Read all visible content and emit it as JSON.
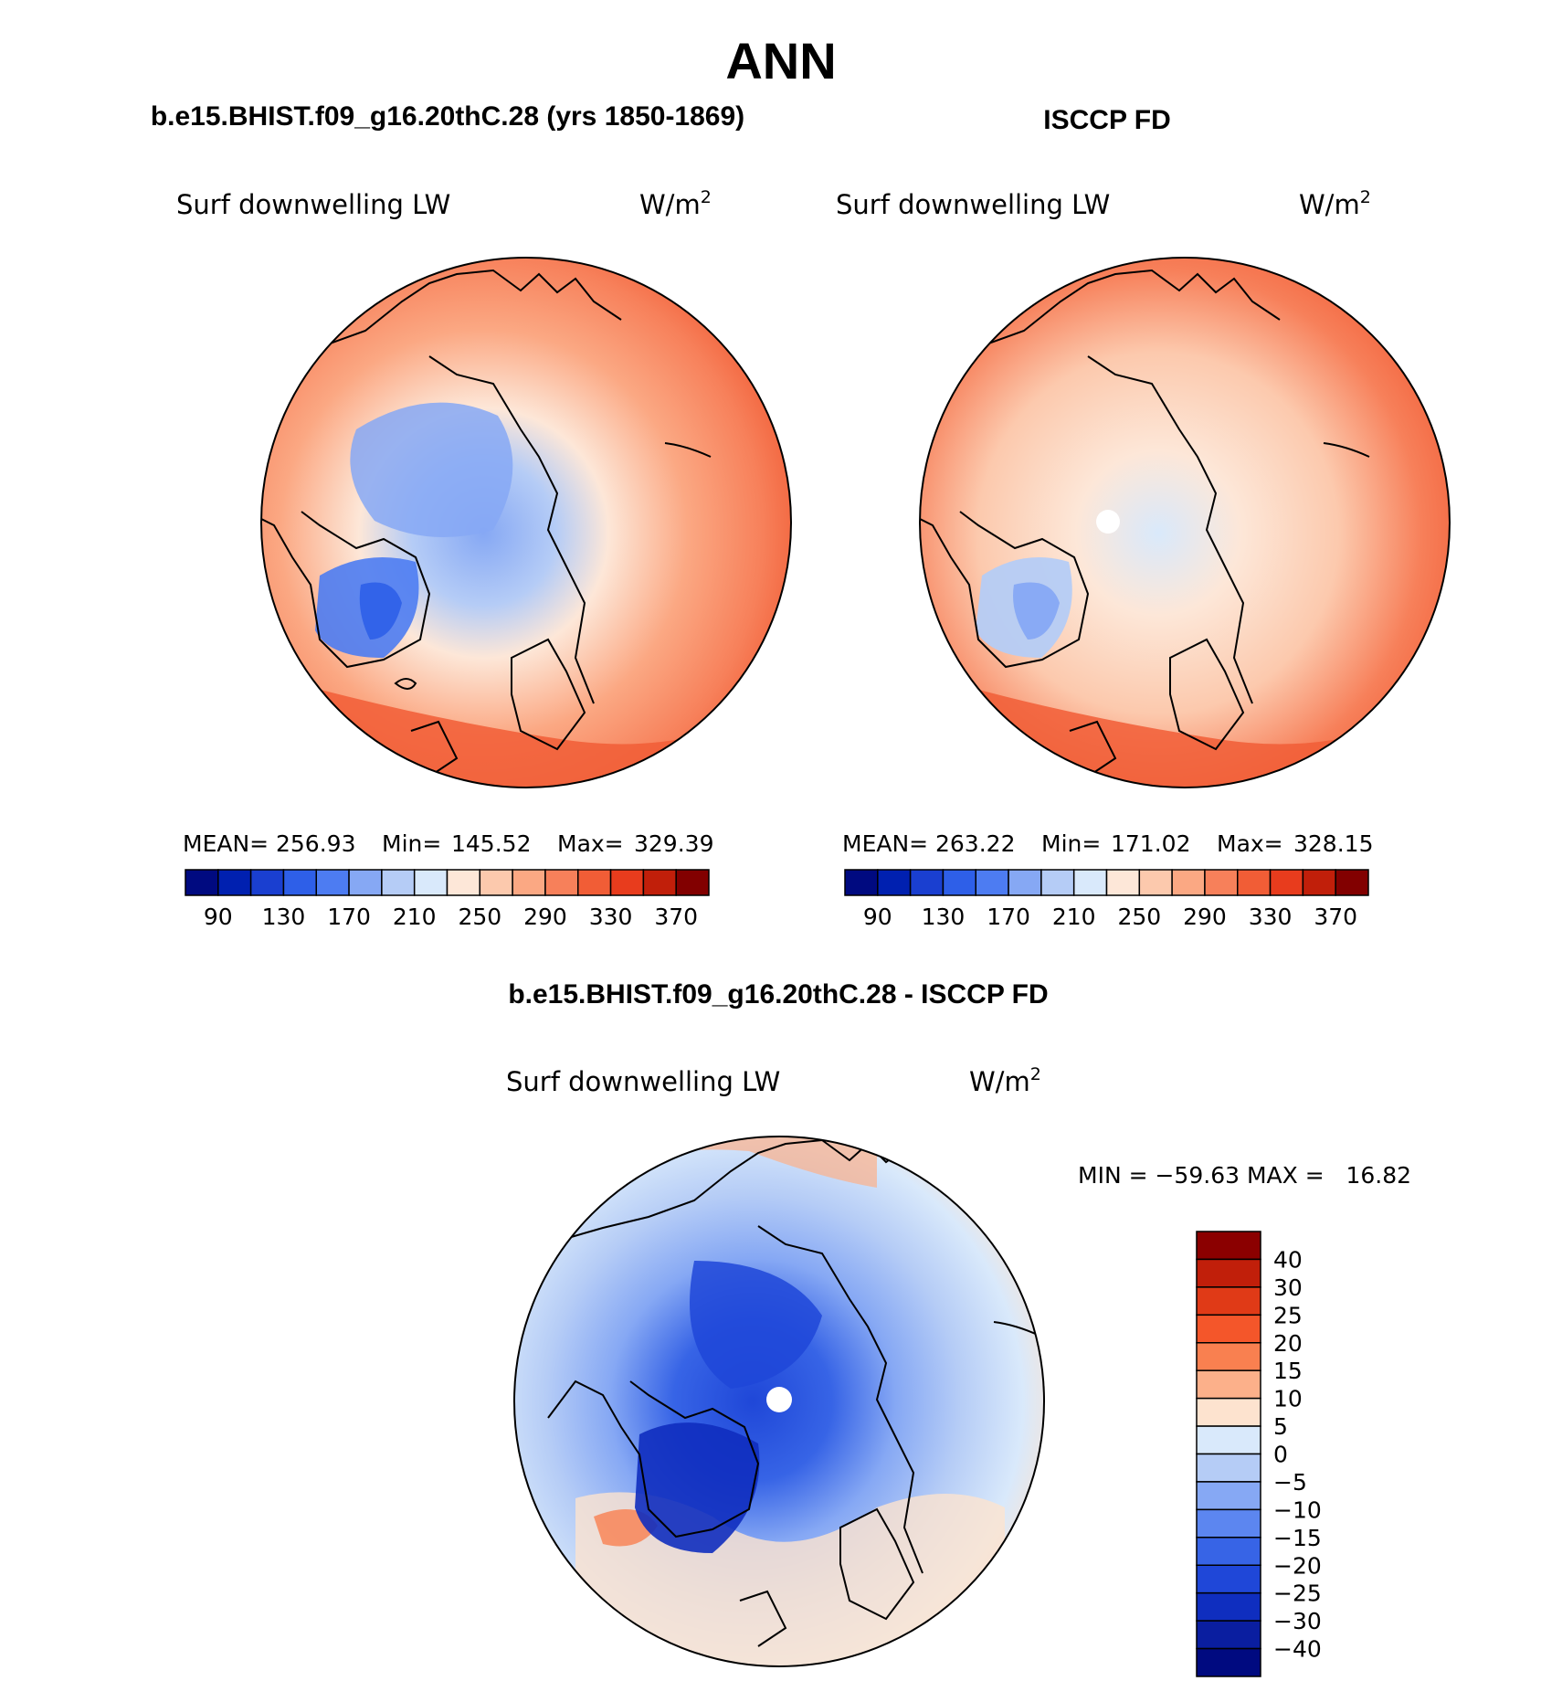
{
  "page_title": "ANN",
  "chart_data": [
    {
      "type": "heatmap",
      "projection": "north-polar-stereographic",
      "title": "b.e15.BHIST.f09_g16.20thC.28 (yrs 1850-1869)",
      "variable_label": "Surf downwelling LW",
      "units_label": "W/m",
      "units_superscript": "2",
      "stats": [
        {
          "label": "MEAN=",
          "value": "256.93"
        },
        {
          "label": "Min=",
          "value": "145.52"
        },
        {
          "label": "Max=",
          "value": "329.39"
        }
      ],
      "colorbar": {
        "levels": [
          70,
          90,
          110,
          130,
          150,
          170,
          190,
          210,
          230,
          250,
          270,
          290,
          310,
          330,
          350,
          370,
          390
        ],
        "tick_labels": [
          "90",
          "130",
          "170",
          "210",
          "250",
          "290",
          "330",
          "370"
        ],
        "colors": [
          "#000a80",
          "#0020b0",
          "#1a3fd0",
          "#2e5fe8",
          "#4d7cf2",
          "#86a8f4",
          "#b5ccf6",
          "#d9e9fb",
          "#fde7d8",
          "#fcc9ad",
          "#fba883",
          "#f7805a",
          "#f15d36",
          "#e83c1d",
          "#c11f0a",
          "#820000"
        ]
      }
    },
    {
      "type": "heatmap",
      "projection": "north-polar-stereographic",
      "title": "ISCCP FD",
      "variable_label": "Surf downwelling LW",
      "units_label": "W/m",
      "units_superscript": "2",
      "stats": [
        {
          "label": "MEAN=",
          "value": "263.22"
        },
        {
          "label": "Min=",
          "value": "171.02"
        },
        {
          "label": "Max=",
          "value": "328.15"
        }
      ],
      "colorbar": {
        "levels": [
          70,
          90,
          110,
          130,
          150,
          170,
          190,
          210,
          230,
          250,
          270,
          290,
          310,
          330,
          350,
          370,
          390
        ],
        "tick_labels": [
          "90",
          "130",
          "170",
          "210",
          "250",
          "290",
          "330",
          "370"
        ],
        "colors": [
          "#000a80",
          "#0020b0",
          "#1a3fd0",
          "#2e5fe8",
          "#4d7cf2",
          "#86a8f4",
          "#b5ccf6",
          "#d9e9fb",
          "#fde7d8",
          "#fcc9ad",
          "#fba883",
          "#f7805a",
          "#f15d36",
          "#e83c1d",
          "#c11f0a",
          "#820000"
        ]
      }
    },
    {
      "type": "heatmap",
      "projection": "north-polar-stereographic",
      "title": "b.e15.BHIST.f09_g16.20thC.28 - ISCCP FD",
      "variable_label": "Surf downwelling LW",
      "units_label": "W/m",
      "units_superscript": "2",
      "minmax_text": "MIN = −59.63 MAX =   16.82",
      "colorbar": {
        "orientation": "vertical",
        "tick_labels": [
          "40",
          "30",
          "25",
          "20",
          "15",
          "10",
          "5",
          "0",
          "−5",
          "−10",
          "−15",
          "−20",
          "−25",
          "−30",
          "−40"
        ],
        "colors": [
          "#8b0000",
          "#c11f0a",
          "#e03a17",
          "#f4562a",
          "#f98050",
          "#fcb08a",
          "#fde3cf",
          "#d9e9fb",
          "#b5ccf6",
          "#86a8f4",
          "#5c86f0",
          "#3764e6",
          "#1f47d8",
          "#0f2ebf",
          "#0a1ea0",
          "#000a80"
        ]
      }
    }
  ]
}
